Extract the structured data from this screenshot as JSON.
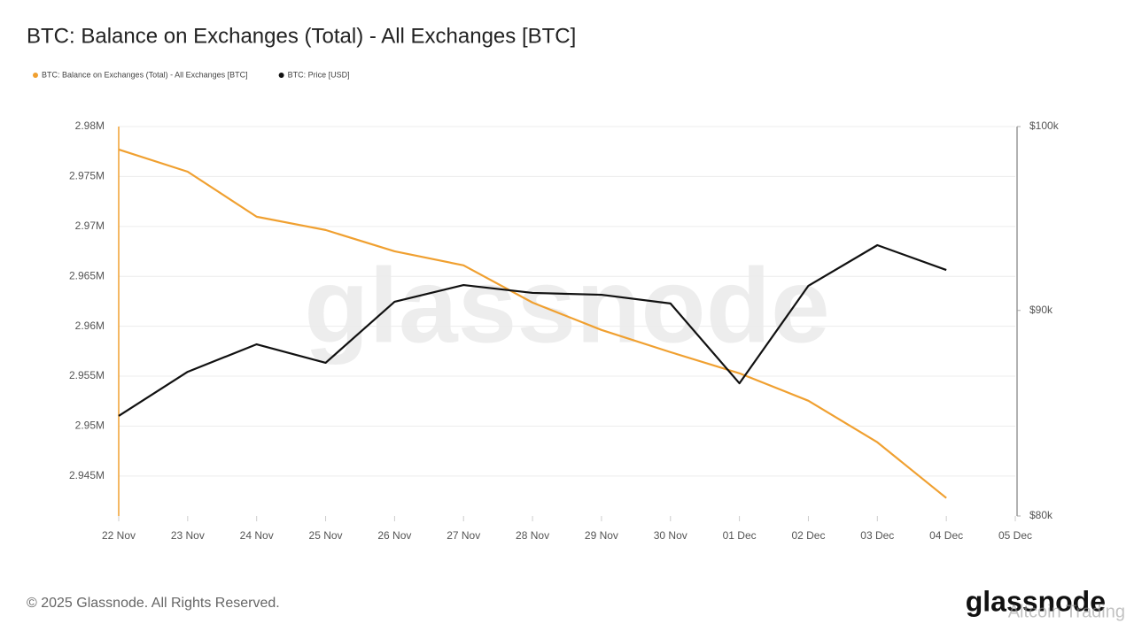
{
  "chart_data": {
    "type": "line",
    "title": "BTC: Balance on Exchanges (Total) - All Exchanges [BTC]",
    "categories": [
      "22 Nov",
      "23 Nov",
      "24 Nov",
      "25 Nov",
      "26 Nov",
      "27 Nov",
      "28 Nov",
      "29 Nov",
      "30 Nov",
      "01 Dec",
      "02 Dec",
      "03 Dec",
      "04 Dec",
      "05 Dec"
    ],
    "series": [
      {
        "name": "BTC: Balance on Exchanges (Total) - All Exchanges [BTC]",
        "color": "#f0a030",
        "axis": "y",
        "values": [
          2977700,
          2975480,
          2970970,
          2969640,
          2967510,
          2966100,
          2962370,
          2959630,
          2957410,
          2955290,
          2952540,
          2948380,
          2942800,
          null
        ]
      },
      {
        "name": "BTC: Price [USD]",
        "color": "#111111",
        "axis": "y2",
        "values": [
          84720,
          86890,
          88270,
          87340,
          90450,
          91320,
          90910,
          90810,
          90360,
          86320,
          91280,
          93430,
          92110,
          null
        ]
      }
    ],
    "ylim": [
      2941000,
      2980000
    ],
    "yticks": [
      {
        "value": 2945000,
        "label": "2.945M"
      },
      {
        "value": 2950000,
        "label": "2.95M"
      },
      {
        "value": 2955000,
        "label": "2.955M"
      },
      {
        "value": 2960000,
        "label": "2.96M"
      },
      {
        "value": 2965000,
        "label": "2.965M"
      },
      {
        "value": 2970000,
        "label": "2.97M"
      },
      {
        "value": 2975000,
        "label": "2.975M"
      },
      {
        "value": 2980000,
        "label": "2.98M"
      }
    ],
    "y2lim": [
      80000,
      100000
    ],
    "y2log": true,
    "y2ticks": [
      {
        "value": 80000,
        "label": "$80k"
      },
      {
        "value": 90000,
        "label": "$90k"
      },
      {
        "value": 100000,
        "label": "$100k"
      }
    ],
    "grid": true,
    "legend": "top-left",
    "watermark": "glassnode",
    "footer": "© 2025 Glassnode. All Rights Reserved.",
    "logo": "glassnode",
    "overlay": "Altcoin Trading"
  }
}
